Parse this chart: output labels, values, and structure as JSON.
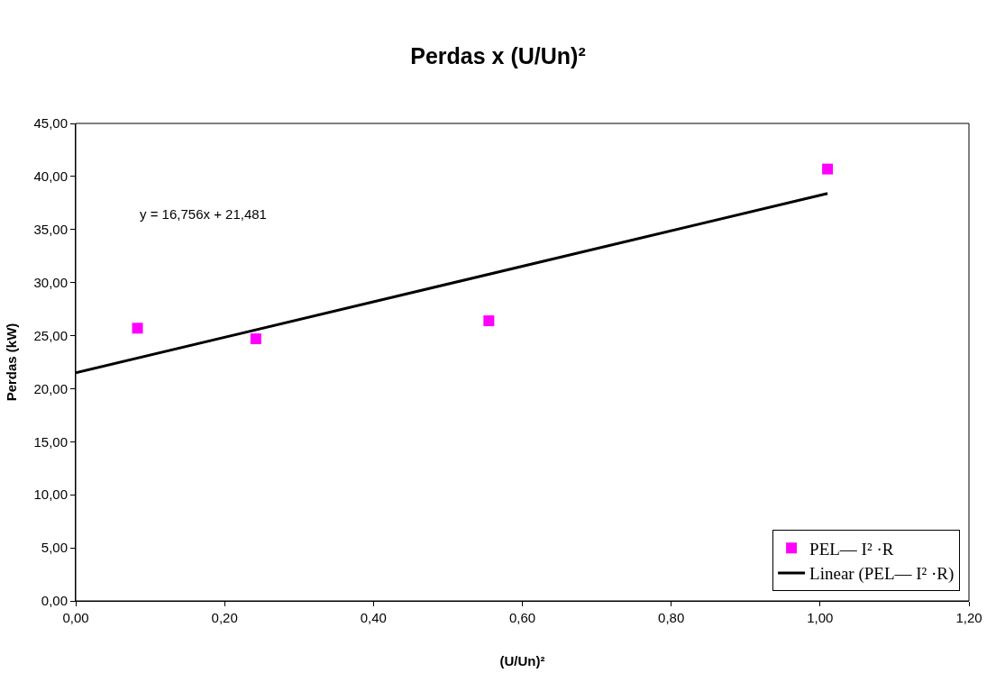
{
  "chart_data": {
    "type": "scatter",
    "title": "Perdas x (U/Un)²",
    "xlabel": "(U/Un)²",
    "ylabel": "Perdas (kW)",
    "annotations": [
      "y = 16,756x + 21,481"
    ],
    "series": [
      {
        "name": "PEL— I² ·R",
        "color": "#ff00ff",
        "marker": "square",
        "x": [
          0.083,
          0.242,
          0.555,
          1.01
        ],
        "values": [
          25.7,
          24.7,
          26.4,
          40.7
        ]
      },
      {
        "name": "Linear (PEL— I² ·R)",
        "type": "line",
        "color": "#000000",
        "marker": "none",
        "line_style": "solid",
        "x": [
          0,
          1.01
        ],
        "values": [
          21.5,
          38.4
        ]
      }
    ],
    "xlim": [
      0,
      1.2
    ],
    "xticks": [
      {
        "value": 0,
        "label": "0,00"
      },
      {
        "value": 0.2,
        "label": "0,20"
      },
      {
        "value": 0.4,
        "label": "0,40"
      },
      {
        "value": 0.6,
        "label": "0,60"
      },
      {
        "value": 0.8,
        "label": "0,80"
      },
      {
        "value": 1.0,
        "label": "1,00"
      },
      {
        "value": 1.2,
        "label": "1,20"
      }
    ],
    "ylim": [
      0,
      45
    ],
    "yticks": [
      {
        "value": 0,
        "label": "0,00"
      },
      {
        "value": 5,
        "label": "5,00"
      },
      {
        "value": 10,
        "label": "10,00"
      },
      {
        "value": 15,
        "label": "15,00"
      },
      {
        "value": 20,
        "label": "20,00"
      },
      {
        "value": 25,
        "label": "25,00"
      },
      {
        "value": 30,
        "label": "30,00"
      },
      {
        "value": 35,
        "label": "35,00"
      },
      {
        "value": 40,
        "label": "40,00"
      },
      {
        "value": 45,
        "label": "45,00"
      }
    ],
    "grid": false,
    "legend": "bottom right"
  }
}
